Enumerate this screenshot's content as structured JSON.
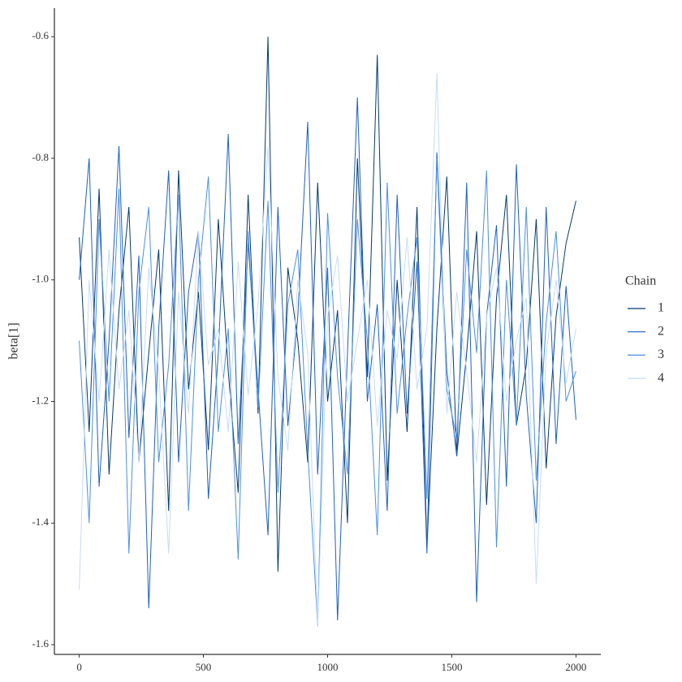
{
  "chart_data": {
    "type": "line",
    "y_label": "beta[1]",
    "legend_title": "Chain",
    "legend": "right",
    "x": [
      0,
      40,
      80,
      120,
      160,
      200,
      240,
      280,
      320,
      360,
      400,
      440,
      480,
      520,
      560,
      600,
      640,
      680,
      720,
      760,
      800,
      840,
      880,
      920,
      960,
      1000,
      1040,
      1080,
      1120,
      1160,
      1200,
      1240,
      1280,
      1320,
      1360,
      1400,
      1440,
      1480,
      1520,
      1560,
      1600,
      1640,
      1680,
      1720,
      1760,
      1800,
      1840,
      1880,
      1920,
      1960,
      2000
    ],
    "series": [
      {
        "name": "1",
        "color": "#03396c",
        "values": [
          -0.93,
          -1.25,
          -0.85,
          -1.32,
          -1.05,
          -0.88,
          -1.3,
          -1.12,
          -0.95,
          -1.38,
          -0.82,
          -1.18,
          -1.02,
          -1.28,
          -0.9,
          -1.15,
          -1.35,
          -0.86,
          -1.22,
          -0.6,
          -1.48,
          -0.98,
          -1.1,
          -1.3,
          -0.84,
          -1.2,
          -1.05,
          -1.4,
          -0.8,
          -1.16,
          -0.63,
          -1.33,
          -1.0,
          -1.25,
          -0.88,
          -1.44,
          -1.08,
          -0.83,
          -1.29,
          -1.12,
          -0.92,
          -1.37,
          -1.03,
          -0.86,
          -1.24,
          -1.14,
          -0.9,
          -1.31,
          -1.06,
          -0.94,
          -0.87
        ]
      },
      {
        "name": "2",
        "color": "#1c5fc4",
        "values": [
          -1.0,
          -0.8,
          -1.34,
          -1.1,
          -0.78,
          -1.26,
          -0.96,
          -1.54,
          -1.08,
          -0.82,
          -1.3,
          -1.02,
          -0.92,
          -1.36,
          -1.12,
          -0.76,
          -1.27,
          -0.94,
          -1.18,
          -1.42,
          -0.88,
          -1.24,
          -1.06,
          -0.74,
          -1.32,
          -0.98,
          -1.56,
          -1.12,
          -0.7,
          -1.2,
          -1.04,
          -1.38,
          -0.86,
          -1.22,
          -0.97,
          -1.45,
          -0.79,
          -1.15,
          -1.29,
          -0.84,
          -1.53,
          -1.06,
          -0.91,
          -1.34,
          -0.81,
          -1.19,
          -1.4,
          -0.88,
          -1.27,
          -1.01,
          -1.23
        ]
      },
      {
        "name": "3",
        "color": "#4a8fe7",
        "values": [
          -1.1,
          -1.4,
          -0.9,
          -1.2,
          -0.85,
          -1.45,
          -1.02,
          -0.88,
          -1.3,
          -1.14,
          -0.86,
          -1.38,
          -1.0,
          -0.83,
          -1.25,
          -1.08,
          -1.46,
          -0.92,
          -1.21,
          -0.87,
          -1.35,
          -1.04,
          -0.95,
          -1.28,
          -1.57,
          -0.89,
          -1.16,
          -1.32,
          -0.9,
          -1.1,
          -1.42,
          -0.84,
          -1.22,
          -1.06,
          -0.93,
          -1.36,
          -0.8,
          -1.18,
          -1.26,
          -0.95,
          -1.12,
          -0.82,
          -1.44,
          -1.0,
          -1.24,
          -0.88,
          -1.33,
          -1.07,
          -0.92,
          -1.2,
          -1.15
        ]
      },
      {
        "name": "4",
        "color": "#c6dcf9",
        "values": [
          -1.51,
          -1.0,
          -1.2,
          -0.95,
          -1.18,
          -1.05,
          -1.3,
          -0.98,
          -1.15,
          -1.45,
          -1.02,
          -1.22,
          -0.92,
          -1.14,
          -1.08,
          -1.25,
          -0.97,
          -1.19,
          -1.04,
          -0.78,
          -1.16,
          -1.28,
          -1.0,
          -1.12,
          -1.57,
          -1.06,
          -0.96,
          -1.2,
          -1.1,
          -1.0,
          -1.24,
          -1.05,
          -1.13,
          -0.93,
          -1.18,
          -1.08,
          -0.66,
          -1.22,
          -1.02,
          -1.15,
          -1.3,
          -1.06,
          -0.98,
          -1.2,
          -1.1,
          -1.03,
          -1.5,
          -1.12,
          -1.0,
          -1.17,
          -1.08
        ]
      }
    ],
    "xlim": [
      -100,
      2100
    ],
    "xticks": [
      0,
      500,
      1000,
      1500,
      2000
    ],
    "ylim": [
      -1.616,
      -0.553
    ],
    "yticks": [
      -0.6,
      -0.8,
      {
        "value": -1,
        "label": "-1.0"
      },
      -1.2,
      -1.4,
      -1.6
    ],
    "grid": false
  }
}
